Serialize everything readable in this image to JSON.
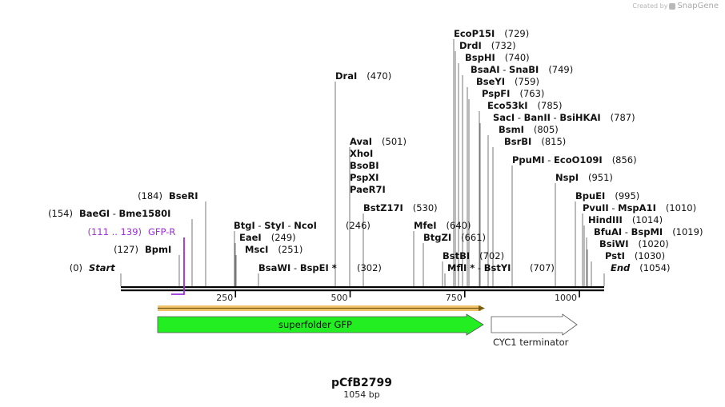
{
  "credit": {
    "prefix": "Created by",
    "brand": "SnapGene"
  },
  "plasmid": {
    "name": "pCfB2799",
    "length_label": "1054 bp",
    "length": 1054
  },
  "axis": {
    "ticks": [
      "250",
      "500",
      "750",
      "1000"
    ]
  },
  "sites": [
    {
      "id": "start",
      "names": [
        "Start"
      ],
      "pos": "(0)",
      "italic": true
    },
    {
      "id": "bpmi",
      "names": [
        "BpmI"
      ],
      "pos": "(127)"
    },
    {
      "id": "baegi",
      "names": [
        "BaeGI",
        "Bme1580I"
      ],
      "pos": "(154)"
    },
    {
      "id": "bseri",
      "names": [
        "BseRI"
      ],
      "pos": "(184)"
    },
    {
      "id": "btgi",
      "names": [
        "BtgI",
        "StyI",
        "NcoI"
      ],
      "pos": "(246)"
    },
    {
      "id": "eaei",
      "names": [
        "EaeI"
      ],
      "pos": "(249)"
    },
    {
      "id": "msci",
      "names": [
        "MscI"
      ],
      "pos": "(251)"
    },
    {
      "id": "bsawi",
      "names": [
        "BsaWI",
        "BspEI"
      ],
      "pos": "(302)",
      "star": "*"
    },
    {
      "id": "drai",
      "names": [
        "DraI"
      ],
      "pos": "(470)"
    },
    {
      "id": "avai",
      "names": [
        "AvaI"
      ],
      "pos": "(501)"
    },
    {
      "id": "xhoi",
      "names": [
        "XhoI"
      ],
      "pos": ""
    },
    {
      "id": "bsobi",
      "names": [
        "BsoBI"
      ],
      "pos": ""
    },
    {
      "id": "pspxi",
      "names": [
        "PspXI"
      ],
      "pos": ""
    },
    {
      "id": "paer7i",
      "names": [
        "PaeR7I"
      ],
      "pos": ""
    },
    {
      "id": "bstz17i",
      "names": [
        "BstZ17I"
      ],
      "pos": "(530)"
    },
    {
      "id": "mfei",
      "names": [
        "MfeI"
      ],
      "pos": "(640)"
    },
    {
      "id": "btgzi",
      "names": [
        "BtgZI"
      ],
      "pos": "(661)"
    },
    {
      "id": "bstbi",
      "names": [
        "BstBI"
      ],
      "pos": "(702)"
    },
    {
      "id": "mfli",
      "names": [
        "MflI",
        "BstYI"
      ],
      "pos": "(707)",
      "star": "*"
    },
    {
      "id": "ecop15i",
      "names": [
        "EcoP15I"
      ],
      "pos": "(729)"
    },
    {
      "id": "drdi",
      "names": [
        "DrdI"
      ],
      "pos": "(732)"
    },
    {
      "id": "bsphi",
      "names": [
        "BspHI"
      ],
      "pos": "(740)"
    },
    {
      "id": "bsaai",
      "names": [
        "BsaAI",
        "SnaBI"
      ],
      "pos": "(749)"
    },
    {
      "id": "bseyi",
      "names": [
        "BseYI"
      ],
      "pos": "(759)"
    },
    {
      "id": "pspfi",
      "names": [
        "PspFI"
      ],
      "pos": "(763)"
    },
    {
      "id": "eco53ki",
      "names": [
        "Eco53kI"
      ],
      "pos": "(785)"
    },
    {
      "id": "saci",
      "names": [
        "SacI",
        "BanII",
        "BsiHKAI"
      ],
      "pos": "(787)"
    },
    {
      "id": "bsmi",
      "names": [
        "BsmI"
      ],
      "pos": "(805)"
    },
    {
      "id": "bsrbi",
      "names": [
        "BsrBI"
      ],
      "pos": "(815)"
    },
    {
      "id": "ppumi",
      "names": [
        "PpuMI",
        "EcoO109I"
      ],
      "pos": "(856)"
    },
    {
      "id": "nspi",
      "names": [
        "NspI"
      ],
      "pos": "(951)"
    },
    {
      "id": "bpuei",
      "names": [
        "BpuEI"
      ],
      "pos": "(995)"
    },
    {
      "id": "pvuii",
      "names": [
        "PvuII",
        "MspA1I"
      ],
      "pos": "(1010)"
    },
    {
      "id": "hindiii",
      "names": [
        "HindIII"
      ],
      "pos": "(1014)"
    },
    {
      "id": "bfuai",
      "names": [
        "BfuAI",
        "BspMI"
      ],
      "pos": "(1019)"
    },
    {
      "id": "bsiwi",
      "names": [
        "BsiWI"
      ],
      "pos": "(1020)"
    },
    {
      "id": "psti",
      "names": [
        "PstI"
      ],
      "pos": "(1030)"
    },
    {
      "id": "end",
      "names": [
        "End"
      ],
      "pos": "(1054)",
      "italic": true
    }
  ],
  "primer": {
    "name": "GFP-R",
    "range": "(111 .. 139)",
    "color": "#9b30d9"
  },
  "features": [
    {
      "id": "sfgfp",
      "name": "superfolder GFP",
      "color": "#22ee22"
    },
    {
      "id": "cyc1",
      "name": "CYC1 terminator",
      "color": "#ffffff"
    }
  ],
  "orf": {
    "color": "#f2c46a"
  }
}
